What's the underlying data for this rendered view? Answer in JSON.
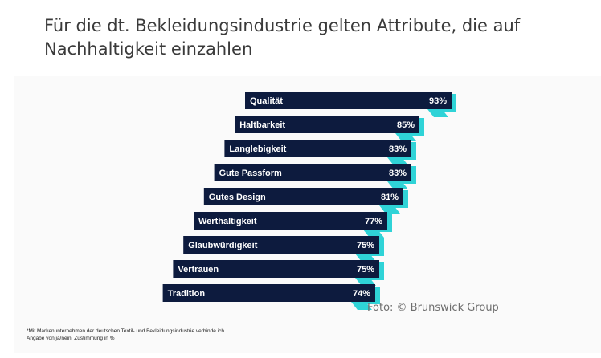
{
  "title": "Für die dt. Bekleidungsindustrie gelten Attribute, die auf Nachhaltigkeit einzahlen",
  "credit": "Foto: © Brunswick Group",
  "footnote": {
    "line1": "*Mit Markenunternehmen der deutschen Textil- und Bekleidungsindustrie verbinde ich ...",
    "line2": "Angabe von ja/nein: Zustimmung in %"
  },
  "colors": {
    "bar": "#0d1b3e",
    "accent": "#2fd3d7",
    "bar_text": "#ffffff",
    "panel": "#fafafa"
  },
  "chart_data": {
    "type": "bar",
    "orientation": "horizontal",
    "categories": [
      "Qualität",
      "Haltbarkeit",
      "Langlebigkeit",
      "Gute Passform",
      "Gutes Design",
      "Werthaltigkeit",
      "Glaubwürdigkeit",
      "Vertrauen",
      "Tradition"
    ],
    "values": [
      93,
      85,
      83,
      83,
      81,
      77,
      75,
      75,
      74
    ],
    "value_labels": [
      "93%",
      "85%",
      "83%",
      "83%",
      "81%",
      "77%",
      "75%",
      "75%",
      "74%"
    ],
    "unit": "%"
  }
}
